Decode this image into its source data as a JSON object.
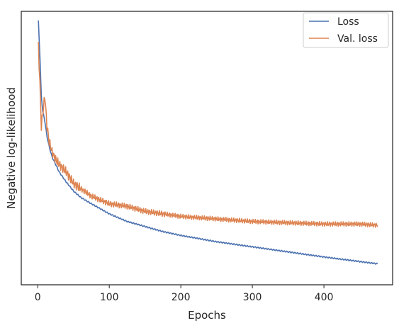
{
  "chart_data": {
    "type": "line",
    "title": "",
    "xlabel": "Epochs",
    "ylabel": "Negative log-likelihood",
    "xlim": [
      -23,
      496
    ],
    "ylim": [
      0,
      1
    ],
    "y_ticks_labeled": false,
    "x_ticks": [
      0,
      100,
      200,
      300,
      400
    ],
    "x_tick_labels": [
      "0",
      "100",
      "200",
      "300",
      "400"
    ],
    "grid": false,
    "legend_position": "top-right",
    "series": [
      {
        "name": "Loss",
        "color": "#4c72b0",
        "x": [
          1,
          3,
          5,
          7,
          10,
          13,
          16,
          20,
          25,
          30,
          40,
          50,
          60,
          75,
          100,
          125,
          150,
          175,
          200,
          250,
          300,
          350,
          400,
          450,
          475
        ],
        "y": [
          0.995,
          0.86,
          0.7,
          0.64,
          0.6,
          0.54,
          0.5,
          0.46,
          0.43,
          0.4,
          0.36,
          0.325,
          0.3,
          0.275,
          0.235,
          0.205,
          0.185,
          0.165,
          0.15,
          0.125,
          0.105,
          0.085,
          0.065,
          0.047,
          0.038
        ]
      },
      {
        "name": "Val. loss",
        "color": "#dd8452",
        "x": [
          1,
          3,
          5,
          7,
          10,
          13,
          16,
          20,
          25,
          30,
          40,
          50,
          60,
          75,
          100,
          125,
          150,
          175,
          200,
          250,
          300,
          350,
          400,
          450,
          475
        ],
        "y": [
          0.9,
          0.75,
          0.58,
          0.63,
          0.7,
          0.58,
          0.52,
          0.48,
          0.45,
          0.43,
          0.4,
          0.355,
          0.335,
          0.305,
          0.275,
          0.265,
          0.245,
          0.235,
          0.225,
          0.215,
          0.205,
          0.2,
          0.195,
          0.195,
          0.19
        ]
      }
    ]
  }
}
